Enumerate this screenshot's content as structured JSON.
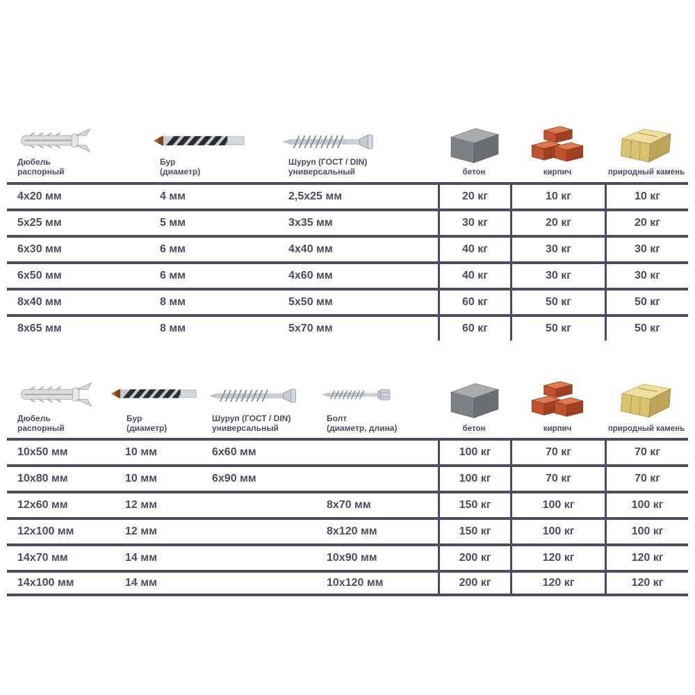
{
  "units": {
    "length": "мм",
    "load": "кг"
  },
  "colors": {
    "text": "#4a4d5e",
    "grid_line": "#4a4d5e",
    "brick": "#c2512d",
    "concrete": "#7e8184",
    "stone": "#d8c373",
    "background": "#ffffff"
  },
  "chart_data": [
    {
      "type": "table",
      "columns": [
        {
          "line1": "Дюбель",
          "line2": "распорный",
          "icon": "dowel-icon"
        },
        {
          "line1": "Бур",
          "line2": "(диаметр)",
          "icon": "drill-bit-icon"
        },
        {
          "line1": "Шуруп (ГОСТ / DIN)",
          "line2": "универсальный",
          "icon": "screw-icon"
        },
        {
          "line1": "бетон",
          "icon": "concrete-block-icon"
        },
        {
          "line1": "кирпич",
          "icon": "brick-icon"
        },
        {
          "line1": "природный камень",
          "icon": "stone-block-icon"
        }
      ],
      "rows": [
        [
          "4x20 мм",
          "4 мм",
          "2,5x25 мм",
          "20 кг",
          "10 кг",
          "10 кг"
        ],
        [
          "5x25 мм",
          "5 мм",
          "3x35 мм",
          "30 кг",
          "20 кг",
          "20 кг"
        ],
        [
          "6x30 мм",
          "6 мм",
          "4x40 мм",
          "40 кг",
          "30 кг",
          "30 кг"
        ],
        [
          "6x50 мм",
          "6 мм",
          "4x60 мм",
          "40 кг",
          "30 кг",
          "30 кг"
        ],
        [
          "8x40 мм",
          "8 мм",
          "5x50 мм",
          "60 кг",
          "50 кг",
          "50 кг"
        ],
        [
          "8x65 мм",
          "8 мм",
          "5x70 мм",
          "60 кг",
          "50 кг",
          "50 кг"
        ]
      ]
    },
    {
      "type": "table",
      "columns": [
        {
          "line1": "Дюбель",
          "line2": "распорный",
          "icon": "dowel-icon"
        },
        {
          "line1": "Бур",
          "line2": "(диаметр)",
          "icon": "drill-bit-icon"
        },
        {
          "line1": "Шуруп (ГОСТ / DIN)",
          "line2": "универсальный",
          "icon": "screw-icon"
        },
        {
          "line1": "Болт",
          "line2": "(диаметр, длина)",
          "icon": "bolt-icon"
        },
        {
          "line1": "бетон",
          "icon": "concrete-block-icon"
        },
        {
          "line1": "кирпич",
          "icon": "brick-icon"
        },
        {
          "line1": "природный камень",
          "icon": "stone-block-icon"
        }
      ],
      "rows": [
        [
          "10x50 мм",
          "10 мм",
          "6x60 мм",
          "",
          "100 кг",
          "70 кг",
          "70 кг"
        ],
        [
          "10x80 мм",
          "10 мм",
          "6x90 мм",
          "",
          "100 кг",
          "70 кг",
          "70 кг"
        ],
        [
          "12x60 мм",
          "12 мм",
          "",
          "8x70 мм",
          "150 кг",
          "100 кг",
          "100 кг"
        ],
        [
          "12x100 мм",
          "12 мм",
          "",
          "8x120 мм",
          "150 кг",
          "100 кг",
          "100 кг"
        ],
        [
          "14x70 мм",
          "14 мм",
          "",
          "10x90 мм",
          "200 кг",
          "120 кг",
          "120 кг"
        ],
        [
          "14x100 мм",
          "14 мм",
          "",
          "10x120 мм",
          "200 кг",
          "120 кг",
          "120 кг"
        ]
      ]
    }
  ]
}
